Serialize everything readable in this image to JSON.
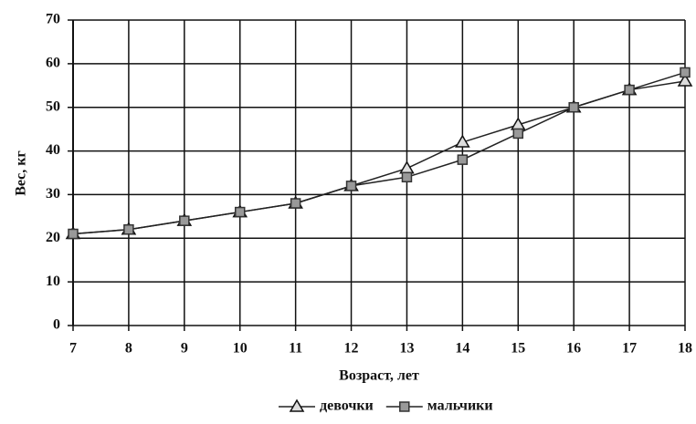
{
  "chart_data": {
    "type": "line",
    "xlabel": "Возраст, лет",
    "ylabel": "Вес, кг",
    "x": [
      7,
      8,
      9,
      10,
      11,
      12,
      13,
      14,
      15,
      16,
      17,
      18
    ],
    "series": [
      {
        "name": "девочки",
        "color": "#222222",
        "marker": "triangle",
        "values": [
          21,
          22,
          24,
          26,
          28,
          32,
          36,
          42,
          46,
          50,
          54,
          56
        ]
      },
      {
        "name": "мальчики",
        "color": "#222222",
        "marker": "square",
        "values": [
          21,
          22,
          24,
          26,
          28,
          32,
          34,
          38,
          44,
          50,
          54,
          58
        ]
      }
    ],
    "xlim": [
      7,
      18
    ],
    "xticks": [
      7,
      8,
      9,
      10,
      11,
      12,
      13,
      14,
      15,
      16,
      17,
      18
    ],
    "ylim": [
      0,
      70
    ],
    "yticks": [
      0,
      10,
      20,
      30,
      40,
      50,
      60,
      70
    ],
    "grid": true,
    "legend": "bottom"
  }
}
